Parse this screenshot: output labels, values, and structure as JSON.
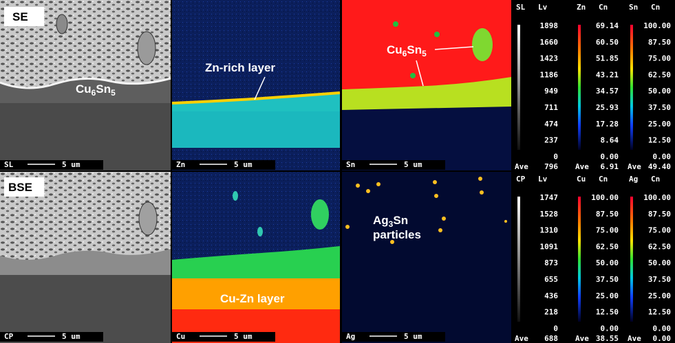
{
  "panels": [
    {
      "label": "SE",
      "scale_name": "SL",
      "scale_text": "5 um"
    },
    {
      "scale_name": "Zn",
      "scale_text": "5 um"
    },
    {
      "scale_name": "Sn",
      "scale_text": "5 um"
    },
    {
      "label": "BSE",
      "scale_name": "CP",
      "scale_text": "5 um"
    },
    {
      "scale_name": "Cu",
      "scale_text": "5 um"
    },
    {
      "scale_name": "Ag",
      "scale_text": "5 um"
    }
  ],
  "annotations": {
    "se_phase": [
      "Cu",
      "6",
      "Sn",
      "5"
    ],
    "zn_layer": "Zn-rich layer",
    "sn_phase": [
      "Cu",
      "6",
      "Sn",
      "5"
    ],
    "ag_phase": [
      "Ag",
      "3",
      "Sn"
    ],
    "ag_particles": "particles",
    "cu_layer": "Cu-Zn layer"
  },
  "legends": [
    [
      {
        "header": [
          "SL",
          "Lv"
        ],
        "levels": [
          "1898",
          "1660",
          "1423",
          "1186",
          "949",
          "711",
          "474",
          "237",
          "0"
        ],
        "ave_label": "Ave",
        "ave": "796",
        "scale": "gray"
      },
      {
        "header": [
          "Zn",
          "Cn"
        ],
        "levels": [
          "69.14",
          "60.50",
          "51.85",
          "43.21",
          "34.57",
          "25.93",
          "17.28",
          "8.64",
          "0.00"
        ],
        "ave_label": "Ave",
        "ave": "6.91",
        "scale": "rainbow"
      },
      {
        "header": [
          "Sn",
          "Cn"
        ],
        "levels": [
          "100.00",
          "87.50",
          "75.00",
          "62.50",
          "50.00",
          "37.50",
          "25.00",
          "12.50",
          "0.00"
        ],
        "ave_label": "Ave",
        "ave": "49.40",
        "scale": "rainbow"
      }
    ],
    [
      {
        "header": [
          "CP",
          "Lv"
        ],
        "levels": [
          "1747",
          "1528",
          "1310",
          "1091",
          "873",
          "655",
          "436",
          "218",
          "0"
        ],
        "ave_label": "Ave",
        "ave": "688",
        "scale": "gray"
      },
      {
        "header": [
          "Cu",
          "Cn"
        ],
        "levels": [
          "100.00",
          "87.50",
          "75.00",
          "62.50",
          "50.00",
          "37.50",
          "25.00",
          "12.50",
          "0.00"
        ],
        "ave_label": "Ave",
        "ave": "38.55",
        "scale": "rainbow"
      },
      {
        "header": [
          "Ag",
          "Cn"
        ],
        "levels": [
          "100.00",
          "87.50",
          "75.00",
          "62.50",
          "50.00",
          "37.50",
          "25.00",
          "12.50",
          "0.00"
        ],
        "ave_label": "Ave",
        "ave": "0.00",
        "scale": "rainbow"
      }
    ]
  ]
}
